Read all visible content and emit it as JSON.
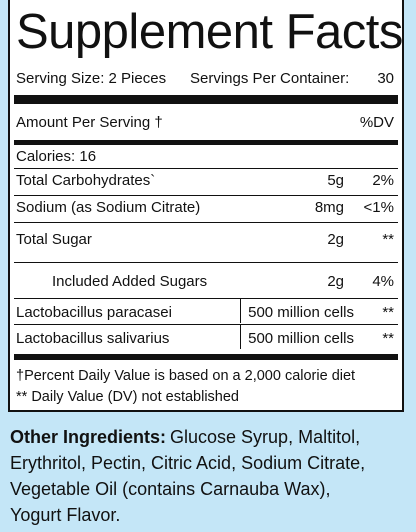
{
  "header": {
    "title": "Supplement Facts"
  },
  "serving": {
    "size": "Serving Size:  2 Pieces",
    "servings_per_container": "Servings Per Container:",
    "container_count": "30"
  },
  "amount_header": "Amount Per Serving †",
  "dv_header": "%DV",
  "calories": "Calories: 16",
  "rows": [
    {
      "name": "Total Carbohydrates`",
      "amount": "5g",
      "dv": "2%"
    },
    {
      "name": "Sodium (as Sodium Citrate)",
      "amount": "8mg",
      "dv": "<1%"
    },
    {
      "name": "Total Sugar",
      "amount": "2g",
      "dv": "**"
    },
    {
      "name": "Included Added Sugars",
      "amount": "2g",
      "dv": "4%"
    },
    {
      "name": "Lactobacillus paracasei",
      "amount": "500 million cells",
      "dv": "**"
    },
    {
      "name": "Lactobacillus salivarius",
      "amount": "500 million cells",
      "dv": "**"
    }
  ],
  "footnotes": [
    "†Percent Daily Value is based on a 2,000 calorie diet",
    "** Daily Value (DV) not established"
  ],
  "other_ingredients": {
    "label": "Other Ingredients:",
    "lines": [
      "Glucose Syrup, Maltitol,",
      "Erythritol, Pectin, Citric Acid, Sodium Citrate,",
      "Vegetable Oil (contains Carnauba Wax),",
      "Yogurt Flavor."
    ]
  }
}
